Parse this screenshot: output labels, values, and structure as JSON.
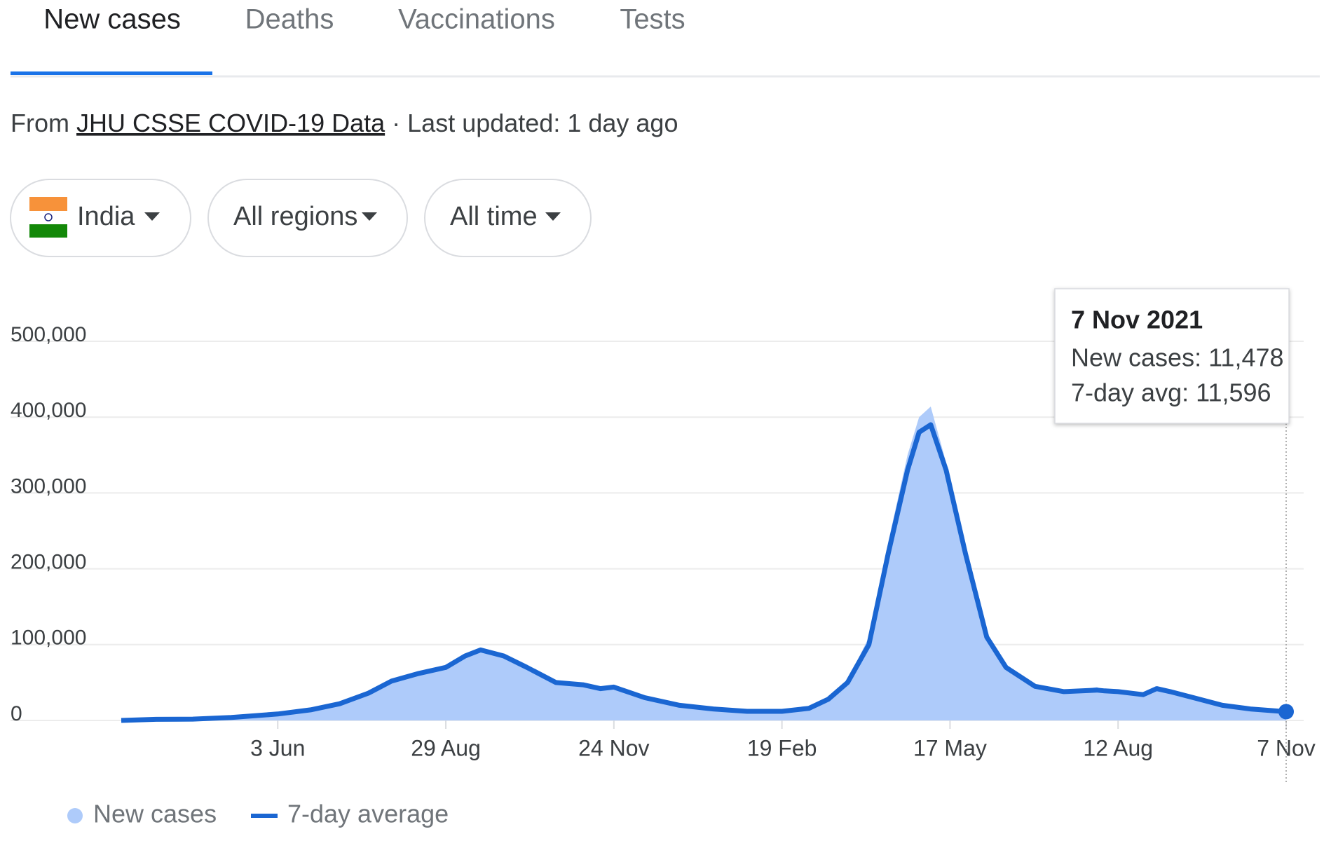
{
  "tabs": [
    "New cases",
    "Deaths",
    "Vaccinations",
    "Tests"
  ],
  "source": {
    "prefix": "From",
    "link": "JHU CSSE COVID-19 Data",
    "suffix": "· Last updated: 1 day ago"
  },
  "filters": [
    "India",
    "All regions",
    "All time"
  ],
  "tooltip": {
    "title": "7 Nov 2021",
    "lines": [
      "New cases: 11,478",
      "7-day avg: 11,596"
    ]
  },
  "chart_data": {
    "type": "area",
    "x": [
      "2020-03-14",
      "2020-04-01",
      "2020-04-20",
      "2020-05-10",
      "2020-06-03",
      "2020-06-20",
      "2020-07-05",
      "2020-07-20",
      "2020-08-01",
      "2020-08-15",
      "2020-08-29",
      "2020-09-08",
      "2020-09-16",
      "2020-09-28",
      "2020-10-10",
      "2020-10-25",
      "2020-11-08",
      "2020-11-17",
      "2020-11-24",
      "2020-12-10",
      "2020-12-28",
      "2021-01-15",
      "2021-02-01",
      "2021-02-19",
      "2021-03-05",
      "2021-03-15",
      "2021-03-25",
      "2021-04-05",
      "2021-04-15",
      "2021-04-25",
      "2021-05-01",
      "2021-05-07",
      "2021-05-15",
      "2021-05-25",
      "2021-06-05",
      "2021-06-15",
      "2021-06-30",
      "2021-07-15",
      "2021-08-01",
      "2021-08-05",
      "2021-08-12",
      "2021-08-25",
      "2021-09-01",
      "2021-09-08",
      "2021-09-20",
      "2021-10-05",
      "2021-10-20",
      "2021-11-07"
    ],
    "series": [
      {
        "name": "New cases",
        "color": "#aecbfa",
        "values": [
          0,
          1600,
          1900,
          4200,
          8800,
          14500,
          22500,
          37000,
          53000,
          63000,
          72000,
          86000,
          95000,
          84000,
          68000,
          49000,
          46000,
          41000,
          45000,
          29000,
          19000,
          15500,
          12500,
          11800,
          16500,
          29000,
          53000,
          110000,
          235000,
          350000,
          400000,
          414000,
          340000,
          210000,
          105000,
          68000,
          44000,
          37000,
          44000,
          40000,
          37000,
          33000,
          43000,
          37000,
          29000,
          19500,
          14500,
          11478
        ]
      },
      {
        "name": "7-day average",
        "color": "#1a66d2",
        "values": [
          0,
          1500,
          1800,
          4000,
          8500,
          14000,
          22000,
          36000,
          52000,
          62000,
          70000,
          85000,
          93000,
          85000,
          70000,
          50000,
          47000,
          42000,
          44000,
          30000,
          20000,
          15000,
          12000,
          12000,
          16000,
          28000,
          50000,
          100000,
          220000,
          330000,
          380000,
          390000,
          330000,
          220000,
          110000,
          70000,
          45000,
          38000,
          40000,
          39000,
          38000,
          34000,
          42000,
          38000,
          30000,
          20000,
          15000,
          11596
        ]
      }
    ],
    "xlim": [
      "2020-03-14",
      "2021-11-07"
    ],
    "xticks": [
      {
        "value": "2020-06-03",
        "label": "3 Jun"
      },
      {
        "value": "2020-08-29",
        "label": "29 Aug"
      },
      {
        "value": "2020-11-24",
        "label": "24 Nov"
      },
      {
        "value": "2021-02-19",
        "label": "19 Feb"
      },
      {
        "value": "2021-05-17",
        "label": "17 May"
      },
      {
        "value": "2021-08-12",
        "label": "12 Aug"
      },
      {
        "value": "2021-11-07",
        "label": "7 Nov"
      }
    ],
    "ylim": [
      0,
      500000
    ],
    "yticks": [
      0,
      {
        "value": 100000,
        "label": "100,000"
      },
      {
        "value": 200000,
        "label": "200,000"
      },
      {
        "value": 300000,
        "label": "300,000"
      },
      {
        "value": 400000,
        "label": "400,000"
      },
      {
        "value": 500000,
        "label": "500,000"
      }
    ],
    "grid": true
  }
}
